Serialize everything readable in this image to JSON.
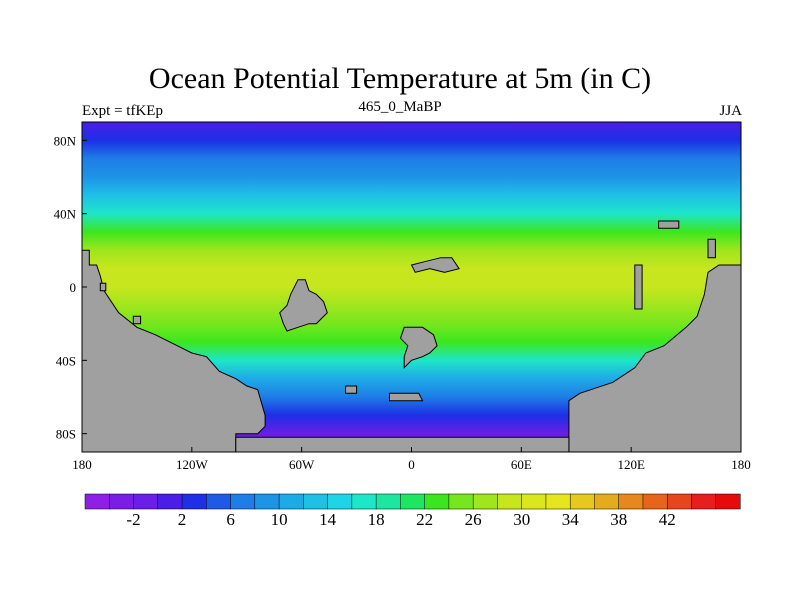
{
  "chart_data": {
    "type": "heatmap",
    "title": "Ocean Potential Temperature at 5m (in C)",
    "subtitle_left": "Expt = tfKEp",
    "subtitle_center": "465_0_MaBP",
    "subtitle_right": "JJA",
    "x_ticks": [
      "180",
      "120W",
      "60W",
      "0",
      "60E",
      "120E",
      "180"
    ],
    "y_ticks": [
      "80N",
      "40N",
      "0",
      "40S",
      "80S"
    ],
    "colorbar": {
      "labels": [
        "-2",
        "2",
        "6",
        "10",
        "14",
        "18",
        "22",
        "26",
        "30",
        "34",
        "38",
        "42"
      ],
      "colors": [
        "#8f1ee6",
        "#7a1ee6",
        "#6a1ee6",
        "#4a1ee6",
        "#1e2fe6",
        "#1e5ae6",
        "#1e7de6",
        "#1e94e6",
        "#1eaae6",
        "#1ec0e6",
        "#1ed4e6",
        "#1ee6c8",
        "#1ee6a0",
        "#1ee660",
        "#3ce61e",
        "#78e61e",
        "#a0e61e",
        "#c8e61e",
        "#dce61e",
        "#e6e61e",
        "#e6c81e",
        "#e6aa1e",
        "#e6881e",
        "#e6641e",
        "#e6461e",
        "#e61e1e",
        "#e60a0a"
      ]
    },
    "land_color": "#a0a0a0",
    "lat_bands_temperature": [
      {
        "lat": 90,
        "temp": 3
      },
      {
        "lat": 80,
        "temp": 5
      },
      {
        "lat": 70,
        "temp": 8
      },
      {
        "lat": 60,
        "temp": 11
      },
      {
        "lat": 50,
        "temp": 15
      },
      {
        "lat": 40,
        "temp": 19
      },
      {
        "lat": 30,
        "temp": 24
      },
      {
        "lat": 20,
        "temp": 28
      },
      {
        "lat": 10,
        "temp": 30
      },
      {
        "lat": 0,
        "temp": 30
      },
      {
        "lat": -10,
        "temp": 29
      },
      {
        "lat": -20,
        "temp": 27
      },
      {
        "lat": -30,
        "temp": 24
      },
      {
        "lat": -40,
        "temp": 18
      },
      {
        "lat": -50,
        "temp": 13
      },
      {
        "lat": -60,
        "temp": 8
      },
      {
        "lat": -70,
        "temp": 4
      },
      {
        "lat": -80,
        "temp": 0
      },
      {
        "lat": -90,
        "temp": -1
      }
    ]
  }
}
